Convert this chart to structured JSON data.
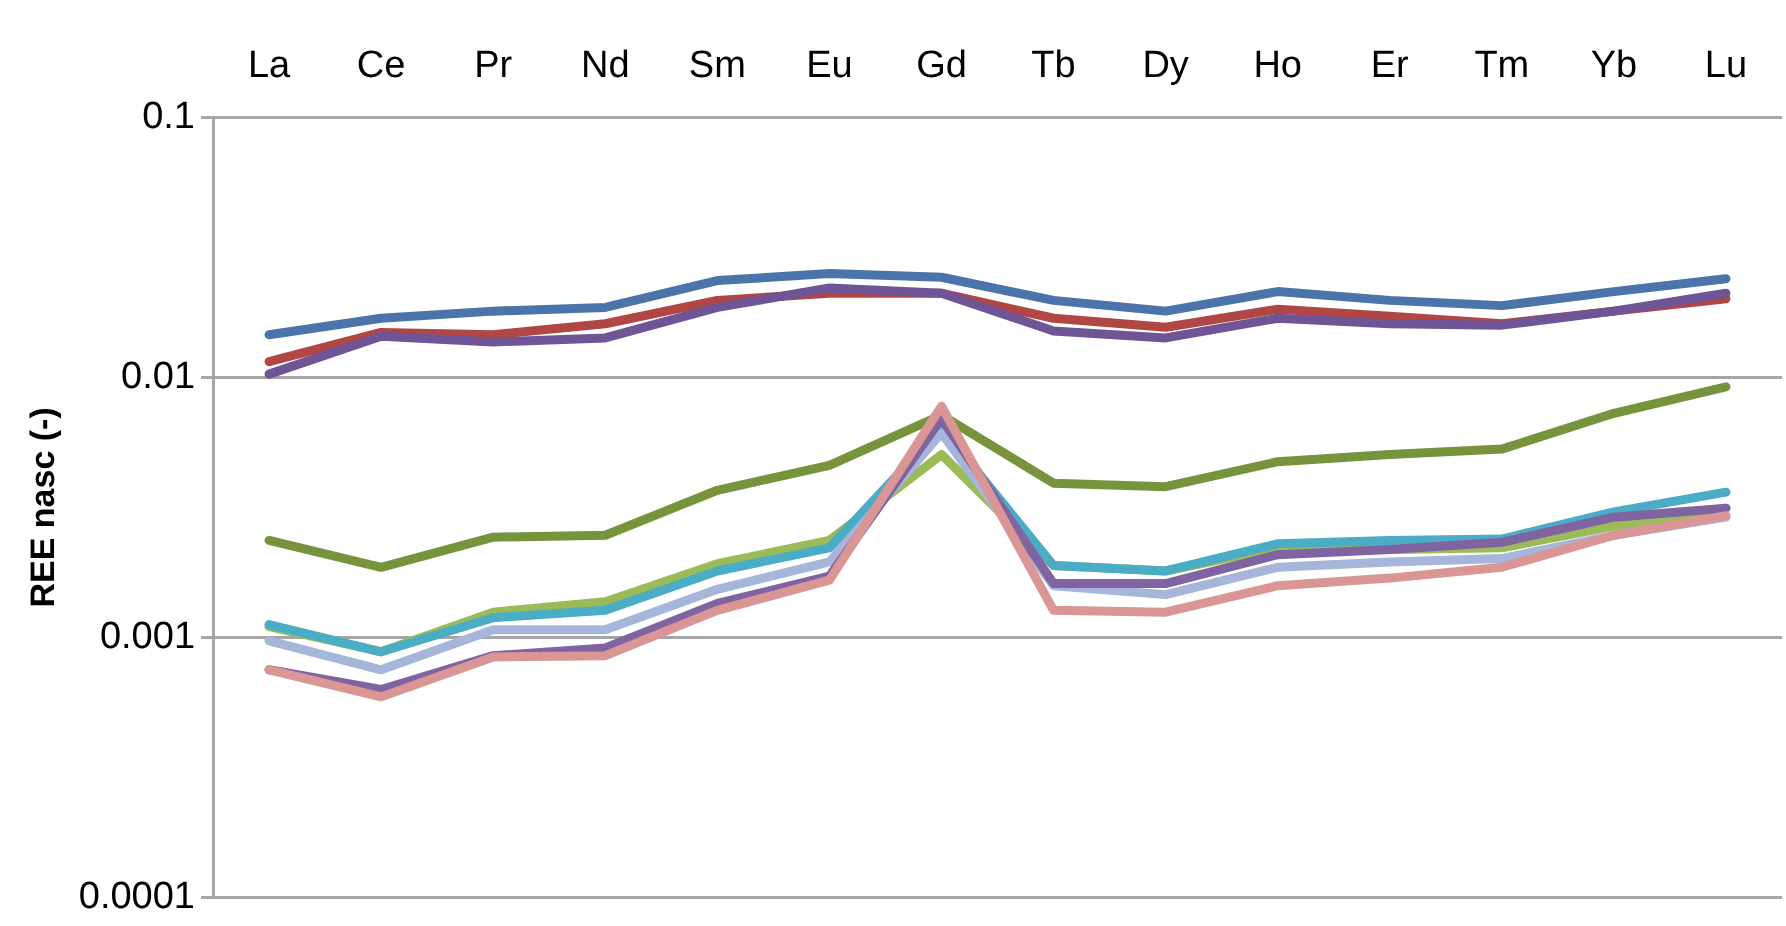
{
  "chart_data": {
    "type": "line",
    "ylabel": "REE nasc (-)",
    "categories": [
      "La",
      "Ce",
      "Pr",
      "Nd",
      "Sm",
      "Eu",
      "Gd",
      "Tb",
      "Dy",
      "Ho",
      "Er",
      "Tm",
      "Yb",
      "Lu"
    ],
    "series": [
      {
        "color": "#4a74aa",
        "values": [
          0.0146,
          0.0169,
          0.018,
          0.0186,
          0.0236,
          0.0251,
          0.0243,
          0.0198,
          0.018,
          0.0214,
          0.0198,
          0.0189,
          0.0214,
          0.024
        ]
      },
      {
        "color": "#b04745",
        "values": [
          0.0115,
          0.0149,
          0.0146,
          0.0161,
          0.0198,
          0.0211,
          0.0211,
          0.0169,
          0.0156,
          0.0183,
          0.0172,
          0.0161,
          0.018,
          0.0201
        ]
      },
      {
        "color": "#6f5496",
        "values": [
          0.0103,
          0.0144,
          0.0137,
          0.0142,
          0.0186,
          0.0221,
          0.0211,
          0.0151,
          0.0142,
          0.0169,
          0.0161,
          0.0159,
          0.018,
          0.0211
        ]
      },
      {
        "color": "#77933c",
        "values": [
          0.00236,
          0.00186,
          0.00243,
          0.00247,
          0.00368,
          0.00459,
          0.00716,
          0.00392,
          0.0038,
          0.00474,
          0.00505,
          0.0053,
          0.00728,
          0.0092
        ]
      },
      {
        "color": "#9bbb59",
        "values": [
          0.0011,
          0.00088,
          0.00125,
          0.00137,
          0.00192,
          0.00236,
          0.00505,
          0.00189,
          0.0018,
          0.00221,
          0.00218,
          0.00221,
          0.00268,
          0.00314
        ]
      },
      {
        "color": "#4bacc6",
        "values": [
          0.00112,
          0.00088,
          0.00119,
          0.00127,
          0.0018,
          0.00221,
          0.00641,
          0.00189,
          0.0018,
          0.00229,
          0.00236,
          0.00239,
          0.00304,
          0.00362
        ]
      },
      {
        "color": "#a5b6da",
        "values": [
          0.00097,
          0.00075,
          0.00107,
          0.00107,
          0.00153,
          0.00195,
          0.00611,
          0.00158,
          0.00146,
          0.00186,
          0.00195,
          0.00201,
          0.00247,
          0.0029
        ]
      },
      {
        "color": "#8064a2",
        "values": [
          0.00075,
          0.00063,
          0.00085,
          0.00091,
          0.00135,
          0.00172,
          0.00694,
          0.00161,
          0.00161,
          0.00208,
          0.00218,
          0.00232,
          0.0029,
          0.00314
        ]
      },
      {
        "color": "#d99694",
        "values": [
          0.00075,
          0.00059,
          0.00084,
          0.00085,
          0.00127,
          0.00166,
          0.00776,
          0.00127,
          0.00125,
          0.00158,
          0.00169,
          0.00186,
          0.00247,
          0.00294
        ]
      }
    ],
    "ylim": [
      0.0001,
      0.1
    ],
    "yticks": [
      0.0001,
      0.001,
      0.01,
      0.1
    ],
    "log": true,
    "grid": "y",
    "legend": false,
    "marker": "none"
  }
}
